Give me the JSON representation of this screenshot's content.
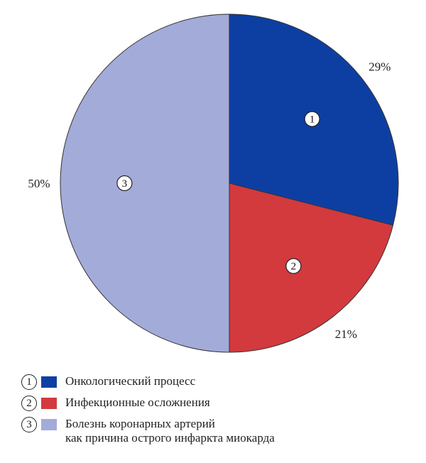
{
  "chart_data": {
    "type": "pie",
    "categories": [
      "Онкологический процесс",
      "Инфекционные осложнения",
      "Болезнь коронарных артерий как причина острого инфаркта миокарда"
    ],
    "values": [
      29,
      21,
      50
    ],
    "value_labels": [
      "29%",
      "21%",
      "50%"
    ],
    "slice_markers": [
      "1",
      "2",
      "3"
    ],
    "colors": [
      "#0d3fa3",
      "#d23a3e",
      "#a3abd9"
    ],
    "start_angle_deg": 0,
    "direction": "clockwise",
    "legend_position": "bottom-left"
  },
  "legend": {
    "items": [
      {
        "number": "1",
        "color": "#0d3fa3",
        "lines": [
          "Онкологический процесс"
        ]
      },
      {
        "number": "2",
        "color": "#d23a3e",
        "lines": [
          "Инфекционные осложнения"
        ]
      },
      {
        "number": "3",
        "color": "#a3abd9",
        "lines": [
          "Болезнь коронарных артерий",
          "как причина острого инфаркта миокарда"
        ]
      }
    ]
  }
}
